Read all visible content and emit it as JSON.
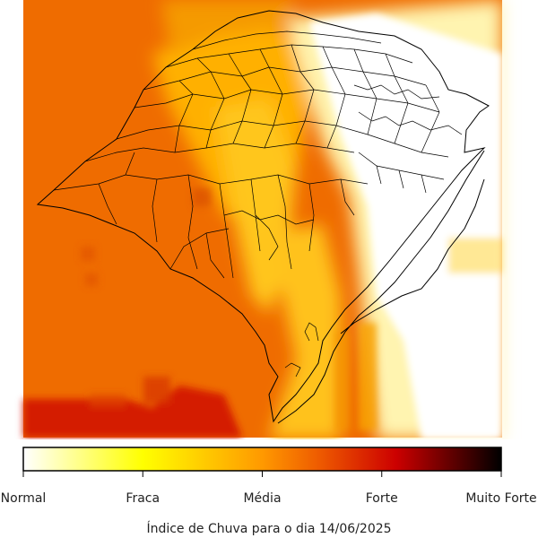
{
  "map": {
    "region": "Rio Grande do Sul",
    "colormap": [
      "#ffffff",
      "#ffff00",
      "#ff9900",
      "#ee6a00",
      "#cc0000",
      "#000000"
    ]
  },
  "legend": {
    "ticks": [
      {
        "value": 0.0,
        "label": "Normal"
      },
      {
        "value": 0.25,
        "label": "Fraca"
      },
      {
        "value": 0.5,
        "label": "Média"
      },
      {
        "value": 0.75,
        "label": "Forte"
      },
      {
        "value": 1.0,
        "label": "Muito Forte"
      }
    ]
  },
  "caption": "Índice de Chuva para o dia 14/06/2025"
}
